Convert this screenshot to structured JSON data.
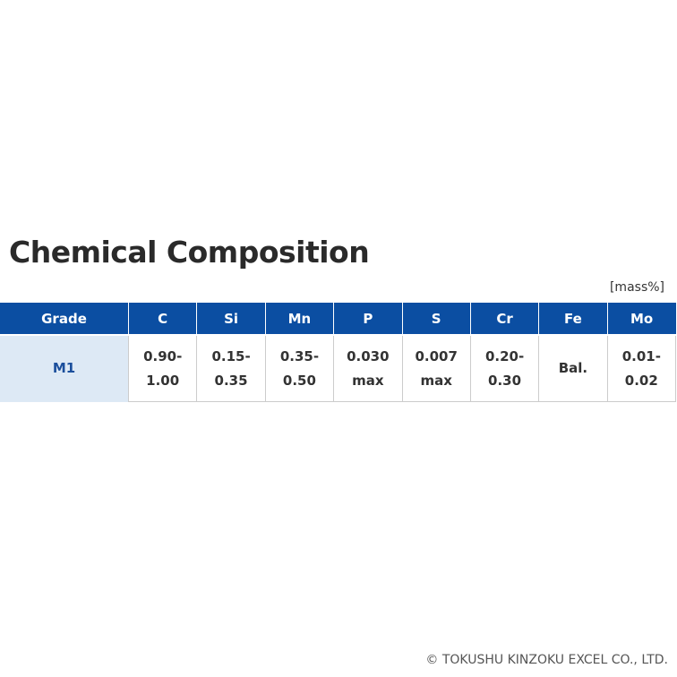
{
  "header": {
    "title": "Chemical Composition",
    "unit": "[mass%]"
  },
  "table": {
    "columns": [
      "Grade",
      "C",
      "Si",
      "Mn",
      "P",
      "S",
      "Cr",
      "Fe",
      "Mo"
    ],
    "rows": [
      [
        [
          "M1"
        ],
        [
          "0.90-",
          "1.00"
        ],
        [
          "0.15-",
          "0.35"
        ],
        [
          "0.35-",
          "0.50"
        ],
        [
          "0.030",
          "max"
        ],
        [
          "0.007",
          "max"
        ],
        [
          "0.20-",
          "0.30"
        ],
        [
          "Bal."
        ],
        [
          "0.01-",
          "0.02"
        ]
      ]
    ]
  },
  "footer": {
    "copyright": "© TOKUSHU KINZOKU EXCEL CO., LTD."
  }
}
